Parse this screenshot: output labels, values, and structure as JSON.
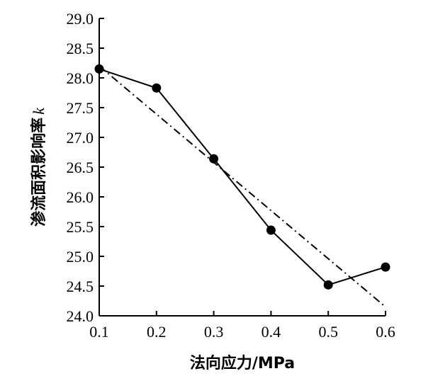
{
  "chart_data": {
    "type": "line",
    "xlabel": "法向应力/MPa",
    "ylabel_text": "渗流面积影响率",
    "ylabel_symbol": "k",
    "xlim": [
      0.1,
      0.6
    ],
    "ylim": [
      24.0,
      29.0
    ],
    "x_ticks": [
      0.1,
      0.2,
      0.3,
      0.4,
      0.5,
      0.6
    ],
    "x_tick_labels": [
      "0.1",
      "0.2",
      "0.3",
      "0.4",
      "0.5",
      "0.6"
    ],
    "y_ticks": [
      24.0,
      24.5,
      25.0,
      25.5,
      26.0,
      26.5,
      27.0,
      27.5,
      28.0,
      28.5,
      29.0
    ],
    "y_tick_labels": [
      "24.0",
      "24.5",
      "25.0",
      "25.5",
      "26.0",
      "26.5",
      "27.0",
      "27.5",
      "28.0",
      "28.5",
      "29.0"
    ],
    "grid": false,
    "series": [
      {
        "style": "solid-with-markers",
        "x": [
          0.1,
          0.2,
          0.3,
          0.4,
          0.5,
          0.6
        ],
        "y": [
          28.15,
          27.83,
          26.64,
          25.44,
          24.52,
          24.82
        ]
      },
      {
        "style": "dash-dot-fit",
        "x": [
          0.1,
          0.6
        ],
        "y": [
          28.2,
          24.15
        ]
      }
    ]
  }
}
